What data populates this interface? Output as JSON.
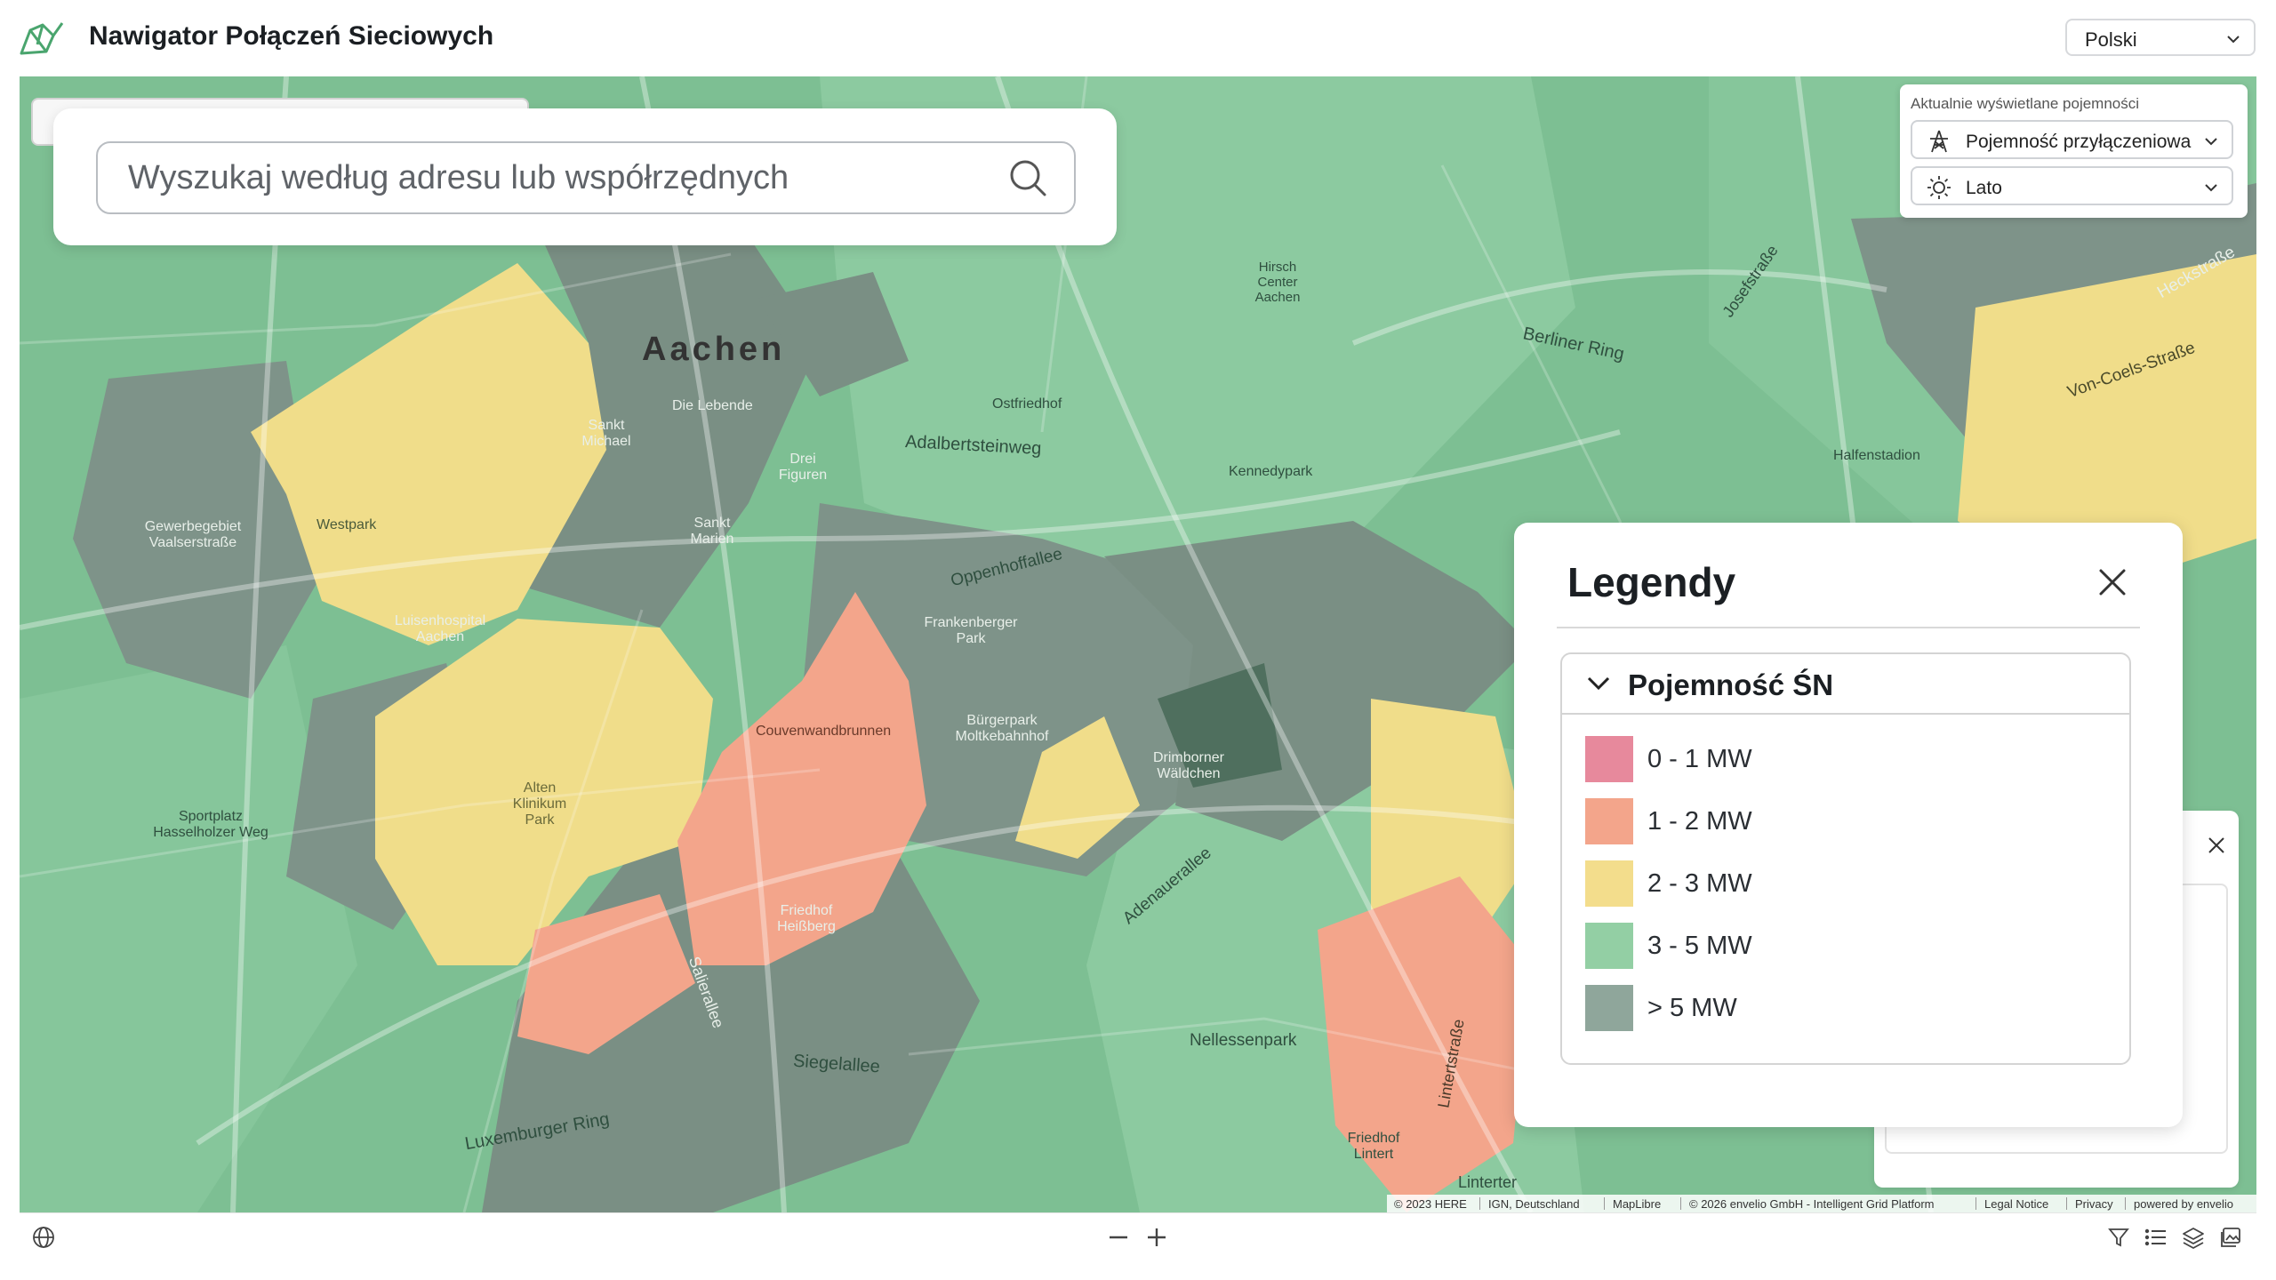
{
  "header": {
    "app_title": "Nawigator Połączeń Sieciowych",
    "language": "Polski"
  },
  "search": {
    "placeholder": "Wyszukaj według adresu lub współrzędnych"
  },
  "capacity_panel": {
    "label": "Aktualnie wyświetlane pojemności",
    "capacity_type": "Pojemność przyłączeniowa",
    "season": "Lato"
  },
  "legend": {
    "title": "Legendy",
    "section_title": "Pojemność ŚN",
    "items": [
      {
        "label": "0 - 1 MW",
        "color": "#e7899c"
      },
      {
        "label": "1 - 2 MW",
        "color": "#f3a58b"
      },
      {
        "label": "2 - 3 MW",
        "color": "#f3dd8c"
      },
      {
        "label": "3 - 5 MW",
        "color": "#93cfa4"
      },
      {
        "label": "> 5 MW",
        "color": "#8fa69b"
      }
    ]
  },
  "map_labels": {
    "city": "Aachen",
    "ring": "Berliner Ring",
    "adalbertsteinweg": "Adalbertsteinweg",
    "oppenhoffallee": "Oppenhoffallee",
    "siegelallee": "Siegelallee",
    "adenauerallee": "Adenauerallee",
    "luxemburger": "Luxemburger Ring",
    "nellessenpark": "Nellessenpark",
    "ostfriedhof": "Ostfriedhof",
    "westpark": "Westpark",
    "couven": "Couvenwandbrunnen",
    "buergerpark": "Bürgerpark Moltkebahnhof",
    "frankenberger": "Frankenberger Park",
    "friedhof_heissberg": "Friedhof Heißberg",
    "hirsch": "Hirsch Center Aachen",
    "halfenstadion": "Halfenstadion",
    "kennedypark": "Kennedypark",
    "lintertstrasse": "Lintertstraße",
    "von_coels": "Von-Coels-Straße",
    "heckstrasse": "Heckstraße",
    "josefstrasse": "Josefstraße",
    "die_lebende": "Die Lebende",
    "drei_figuren": "Drei Figuren",
    "sankt_marien": "Sankt Marien",
    "sankt_michael": "Sankt Michael",
    "luisenhospital": "Luisenhospital Aachen",
    "alten_klinikum": "Alten Klinikum Park",
    "drimborner": "Drimborner Wäldchen",
    "linterter": "Linterter",
    "gewerbegebiet": "Gewerbegebiet Vaalserstraße",
    "sportplatz": "Sportplatz Hasselholzer Weg",
    "salierallee": "Salierallee",
    "friedhof_lintert": "Friedhof Lintert"
  },
  "attribution": [
    "© 2023 HERE",
    "IGN, Deutschland",
    "MapLibre",
    "© 2026 envelio GmbH - Intelligent Grid Platform",
    "Legal Notice",
    "Privacy",
    "powered by envelio"
  ],
  "icons": {
    "logo": "network-logo-icon",
    "globe": "globe-icon",
    "zoom_out": "minus-icon",
    "zoom_in": "plus-icon",
    "filter": "filter-icon",
    "list": "list-icon",
    "layers": "layers-icon",
    "image": "image-icon"
  }
}
